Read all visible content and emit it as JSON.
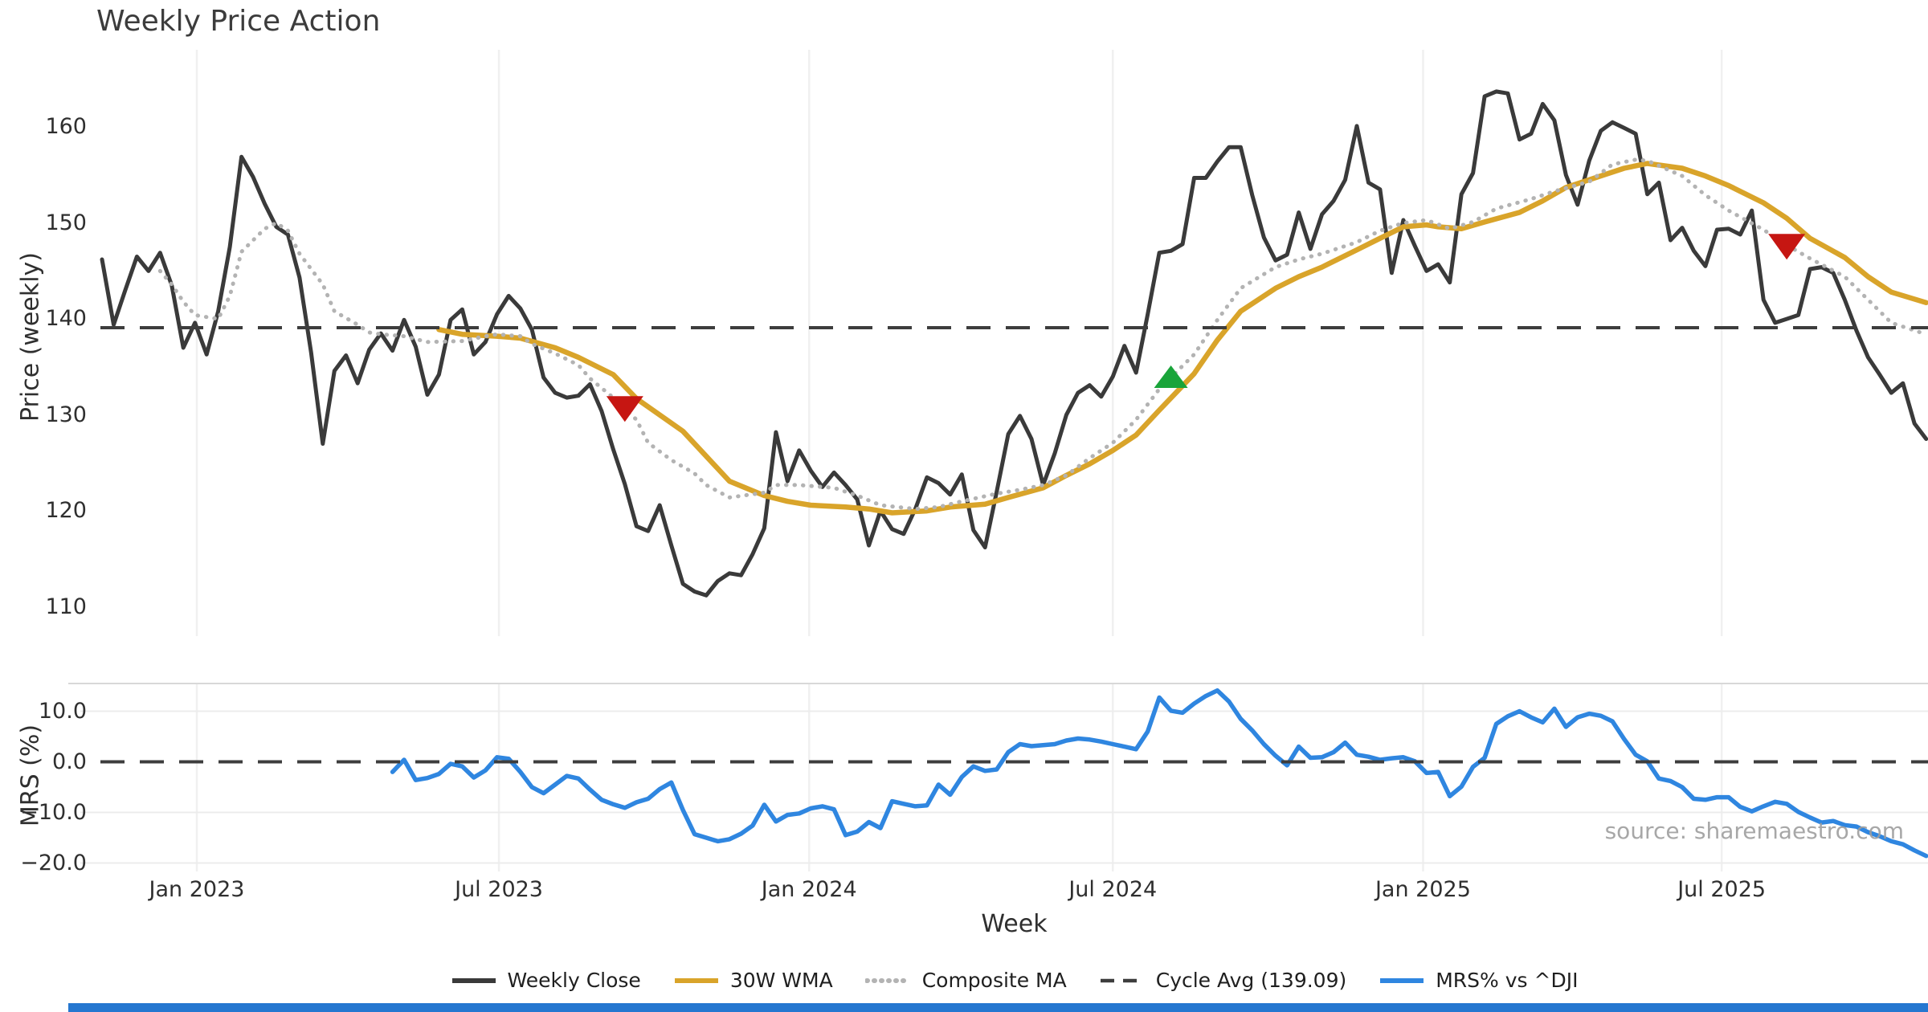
{
  "title": "Weekly Price Action",
  "source": "source: sharemaestro.com",
  "colors": {
    "weekly_close": "#3a3a3a",
    "wma_30w": "#d9a42a",
    "composite_ma": "#b3b3b3",
    "cycle_avg": "#3d3d3d",
    "mrs_line": "#2f86e0",
    "sell_marker": "#c61612",
    "buy_marker": "#19a43a",
    "gridline": "#f0f0f0",
    "panel_border": "#d8d8d8",
    "footer_bar": "#2577d0"
  },
  "legend": {
    "items": [
      {
        "label": "Weekly Close",
        "color": "#3a3a3a",
        "style": "solid"
      },
      {
        "label": "30W WMA",
        "color": "#d9a42a",
        "style": "solid"
      },
      {
        "label": "Composite MA",
        "color": "#b3b3b3",
        "style": "dotted"
      },
      {
        "label": "Cycle Avg (139.09)",
        "color": "#3d3d3d",
        "style": "dashed"
      },
      {
        "label": "MRS% vs ^DJI",
        "color": "#2f86e0",
        "style": "solid"
      }
    ]
  },
  "chart_data": [
    {
      "type": "line",
      "panel": "price",
      "title": "Weekly Price Action",
      "xlabel": "Week",
      "ylabel": "Price (weekly)",
      "ylim": [
        108,
        165.5
      ],
      "grid": "vertical-only",
      "yticks": [
        {
          "value": 160,
          "label": "160"
        },
        {
          "value": 150,
          "label": "150"
        },
        {
          "value": 140,
          "label": "140"
        },
        {
          "value": 130,
          "label": "130"
        },
        {
          "value": 120,
          "label": "120"
        },
        {
          "value": 110,
          "label": "110"
        }
      ],
      "xticks": [
        {
          "week": 8.16,
          "label": "Jan 2023"
        },
        {
          "week": 34.16,
          "label": "Jul 2023"
        },
        {
          "week": 60.86,
          "label": "Jan 2024"
        },
        {
          "week": 87.0,
          "label": "Jul 2024"
        },
        {
          "week": 113.7,
          "label": "Jan 2025"
        },
        {
          "week": 139.4,
          "label": "Jul 2025"
        }
      ],
      "series": [
        {
          "name": "Weekly Close",
          "color": "#3a3a3a",
          "style": "solid",
          "width": 5,
          "start_week": 0,
          "values": [
            146.2,
            139.4,
            143.0,
            146.5,
            145.0,
            146.9,
            143.5,
            137.0,
            139.6,
            136.3,
            140.8,
            147.5,
            156.9,
            154.8,
            152.0,
            149.6,
            148.8,
            144.3,
            136.5,
            127.0,
            134.6,
            136.2,
            133.3,
            136.8,
            138.5,
            136.7,
            139.9,
            137.1,
            132.1,
            134.2,
            139.9,
            141.0,
            136.3,
            137.6,
            140.5,
            142.4,
            141.1,
            138.9,
            133.9,
            132.3,
            131.8,
            132.0,
            133.2,
            130.4,
            126.4,
            122.8,
            118.4,
            117.9,
            120.6,
            116.4,
            112.4,
            111.6,
            111.2,
            112.7,
            113.5,
            113.3,
            115.5,
            118.2,
            128.2,
            123.1,
            126.3,
            124.2,
            122.5,
            124.0,
            122.7,
            121.2,
            116.4,
            120.0,
            118.1,
            117.6,
            120.2,
            123.5,
            122.9,
            121.7,
            123.8,
            118.0,
            116.2,
            122.0,
            128.0,
            129.9,
            127.5,
            122.7,
            126.0,
            130.0,
            132.3,
            133.1,
            131.9,
            134.0,
            137.2,
            134.4,
            140.5,
            146.9,
            147.1,
            147.8,
            154.7,
            154.7,
            156.4,
            157.9,
            157.9,
            152.9,
            148.5,
            146.1,
            146.7,
            151.1,
            147.3,
            150.9,
            152.3,
            154.5,
            160.1,
            154.2,
            153.5,
            144.8,
            150.3,
            147.6,
            145.0,
            145.7,
            143.8,
            153.0,
            155.2,
            163.2,
            163.7,
            163.5,
            158.7,
            159.3,
            162.4,
            160.7,
            155.0,
            151.9,
            156.5,
            159.6,
            160.5,
            159.9,
            159.3,
            153.0,
            154.2,
            148.2,
            149.5,
            147.1,
            145.5,
            149.3,
            149.4,
            148.8,
            151.3,
            142.0,
            139.6,
            140.0,
            140.4,
            145.2,
            145.4,
            144.8,
            142.0,
            138.8,
            136.0,
            134.2,
            132.3,
            133.3,
            129.1,
            127.5
          ]
        },
        {
          "name": "30W WMA",
          "color": "#d9a42a",
          "style": "solid",
          "width": 6.5,
          "points": [
            [
              29,
              138.9
            ],
            [
              31,
              138.4
            ],
            [
              34,
              138.2
            ],
            [
              36,
              138.0
            ],
            [
              39,
              137.0
            ],
            [
              41,
              136.0
            ],
            [
              44,
              134.2
            ],
            [
              46,
              131.7
            ],
            [
              50,
              128.3
            ],
            [
              52,
              125.7
            ],
            [
              54,
              123.1
            ],
            [
              57,
              121.6
            ],
            [
              59,
              121.0
            ],
            [
              61,
              120.6
            ],
            [
              64,
              120.4
            ],
            [
              66,
              120.2
            ],
            [
              68,
              119.8
            ],
            [
              71,
              120.0
            ],
            [
              73,
              120.4
            ],
            [
              76,
              120.7
            ],
            [
              78,
              121.4
            ],
            [
              81,
              122.4
            ],
            [
              83,
              123.7
            ],
            [
              85,
              124.9
            ],
            [
              87,
              126.3
            ],
            [
              89,
              127.9
            ],
            [
              91,
              130.5
            ],
            [
              94,
              134.3
            ],
            [
              96,
              137.8
            ],
            [
              98,
              140.8
            ],
            [
              101,
              143.2
            ],
            [
              103,
              144.4
            ],
            [
              105,
              145.4
            ],
            [
              108,
              147.2
            ],
            [
              110,
              148.4
            ],
            [
              112,
              149.6
            ],
            [
              114,
              149.8
            ],
            [
              115,
              149.6
            ],
            [
              117,
              149.4
            ],
            [
              119,
              150.1
            ],
            [
              122,
              151.1
            ],
            [
              124,
              152.3
            ],
            [
              126,
              153.7
            ],
            [
              129,
              154.9
            ],
            [
              131,
              155.7
            ],
            [
              133,
              156.2
            ],
            [
              136,
              155.7
            ],
            [
              138,
              154.9
            ],
            [
              140,
              153.9
            ],
            [
              143,
              152.1
            ],
            [
              145,
              150.5
            ],
            [
              147,
              148.4
            ],
            [
              150,
              146.4
            ],
            [
              152,
              144.4
            ],
            [
              154,
              142.8
            ],
            [
              157,
              141.7
            ]
          ]
        },
        {
          "name": "Composite MA",
          "color": "#b3b3b3",
          "style": "dotted",
          "width": 5,
          "points": [
            [
              5,
              145.0
            ],
            [
              6,
              143.6
            ],
            [
              7,
              141.8
            ],
            [
              8,
              140.4
            ],
            [
              10,
              140.0
            ],
            [
              11,
              142.4
            ],
            [
              12,
              147.0
            ],
            [
              14,
              149.4
            ],
            [
              15,
              150.0
            ],
            [
              16,
              149.2
            ],
            [
              17,
              146.8
            ],
            [
              19,
              143.6
            ],
            [
              20,
              140.8
            ],
            [
              22,
              139.4
            ],
            [
              23,
              138.6
            ],
            [
              24,
              138.4
            ],
            [
              26,
              138.2
            ],
            [
              28,
              137.6
            ],
            [
              31,
              137.7
            ],
            [
              33,
              138.2
            ],
            [
              34,
              138.4
            ],
            [
              36,
              138.2
            ],
            [
              37,
              137.4
            ],
            [
              39,
              136.4
            ],
            [
              41,
              135.2
            ],
            [
              42,
              133.8
            ],
            [
              44,
              131.8
            ],
            [
              46,
              129.5
            ],
            [
              47,
              127.1
            ],
            [
              49,
              125.3
            ],
            [
              51,
              123.9
            ],
            [
              52,
              122.7
            ],
            [
              54,
              121.4
            ],
            [
              57,
              121.9
            ],
            [
              58,
              122.7
            ],
            [
              60,
              122.7
            ],
            [
              63,
              122.4
            ],
            [
              65,
              121.6
            ],
            [
              67,
              120.6
            ],
            [
              70,
              120.2
            ],
            [
              72,
              120.4
            ],
            [
              74,
              121.0
            ],
            [
              77,
              121.8
            ],
            [
              79,
              122.2
            ],
            [
              81,
              122.7
            ],
            [
              83,
              123.7
            ],
            [
              85,
              125.5
            ],
            [
              87,
              127.1
            ],
            [
              89,
              129.5
            ],
            [
              91,
              132.7
            ],
            [
              94,
              136.3
            ],
            [
              96,
              139.9
            ],
            [
              98,
              143.2
            ],
            [
              101,
              145.4
            ],
            [
              103,
              146.2
            ],
            [
              105,
              146.8
            ],
            [
              108,
              148.0
            ],
            [
              110,
              149.2
            ],
            [
              112,
              150.0
            ],
            [
              114,
              150.3
            ],
            [
              116,
              149.4
            ],
            [
              118,
              150.1
            ],
            [
              120,
              151.5
            ],
            [
              123,
              152.5
            ],
            [
              125,
              153.3
            ],
            [
              128,
              154.3
            ],
            [
              130,
              156.1
            ],
            [
              132,
              156.6
            ],
            [
              133,
              156.5
            ],
            [
              136,
              154.9
            ],
            [
              138,
              152.9
            ],
            [
              140,
              151.3
            ],
            [
              143,
              149.3
            ],
            [
              145,
              147.7
            ],
            [
              147,
              146.3
            ],
            [
              150,
              144.4
            ],
            [
              152,
              142.0
            ],
            [
              154,
              139.6
            ],
            [
              157,
              138.4
            ]
          ]
        },
        {
          "name": "Cycle Avg (139.09)",
          "color": "#3d3d3d",
          "style": "dashed",
          "width": 4,
          "value": 139.09
        }
      ],
      "markers": [
        {
          "shape": "triangle-down",
          "color": "#c61612",
          "week": 45,
          "price": 130.7
        },
        {
          "shape": "triangle-up",
          "color": "#19a43a",
          "week": 92,
          "price": 133.9
        },
        {
          "shape": "triangle-down",
          "color": "#c61612",
          "week": 145,
          "price": 147.6
        }
      ]
    },
    {
      "type": "line",
      "panel": "mrs",
      "xlabel": "Week",
      "ylabel": "MRS (%)",
      "ylim": [
        -21.5,
        15.5
      ],
      "grid": "both",
      "yticks": [
        {
          "value": 10,
          "label": "10.0"
        },
        {
          "value": 0,
          "label": "0.0"
        },
        {
          "value": -10,
          "label": "−10.0"
        },
        {
          "value": -20,
          "label": "−20.0"
        }
      ],
      "series": [
        {
          "name": "MRS% vs ^DJI",
          "color": "#2f86e0",
          "style": "solid",
          "width": 5.5,
          "start_week": 25,
          "values": [
            -2.0,
            0.4,
            -3.6,
            -3.2,
            -2.4,
            -0.4,
            -0.9,
            -3.1,
            -1.7,
            0.9,
            0.6,
            -2.0,
            -5.0,
            -6.2,
            -4.5,
            -2.8,
            -3.3,
            -5.5,
            -7.5,
            -8.4,
            -9.1,
            -8.0,
            -7.3,
            -5.4,
            -4.1,
            -9.5,
            -14.3,
            -15.0,
            -15.7,
            -15.3,
            -14.2,
            -12.6,
            -8.5,
            -11.8,
            -10.5,
            -10.2,
            -9.2,
            -8.8,
            -9.4,
            -14.5,
            -13.8,
            -11.9,
            -13.1,
            -7.8,
            -8.3,
            -8.8,
            -8.6,
            -4.5,
            -6.5,
            -3.0,
            -0.9,
            -1.8,
            -1.5,
            1.9,
            3.5,
            3.1,
            3.3,
            3.5,
            4.2,
            4.6,
            4.4,
            4.0,
            3.5,
            3.0,
            2.5,
            6.0,
            12.7,
            10.1,
            9.7,
            11.5,
            13.0,
            14.1,
            11.9,
            8.5,
            6.2,
            3.5,
            1.2,
            -0.7,
            3.0,
            0.8,
            0.9,
            1.9,
            3.8,
            1.4,
            1.0,
            0.4,
            0.7,
            0.9,
            0.1,
            -2.2,
            -2.0,
            -6.8,
            -4.9,
            -1.0,
            0.8,
            7.5,
            9.0,
            10.0,
            8.8,
            7.8,
            10.5,
            6.9,
            8.8,
            9.5,
            9.1,
            8.0,
            4.5,
            1.4,
            0.1,
            -3.3,
            -3.8,
            -5.0,
            -7.3,
            -7.5,
            -7.0,
            -7.0,
            -8.9,
            -9.8,
            -8.8,
            -7.9,
            -8.3,
            -9.9,
            -11.0,
            -12.0,
            -11.7,
            -12.5,
            -12.8,
            -13.9,
            -14.7,
            -15.7,
            -16.3,
            -17.5,
            -18.6
          ]
        },
        {
          "name": "Zero line",
          "color": "#3d3d3d",
          "style": "dashed",
          "width": 4,
          "value": 0
        }
      ]
    }
  ]
}
